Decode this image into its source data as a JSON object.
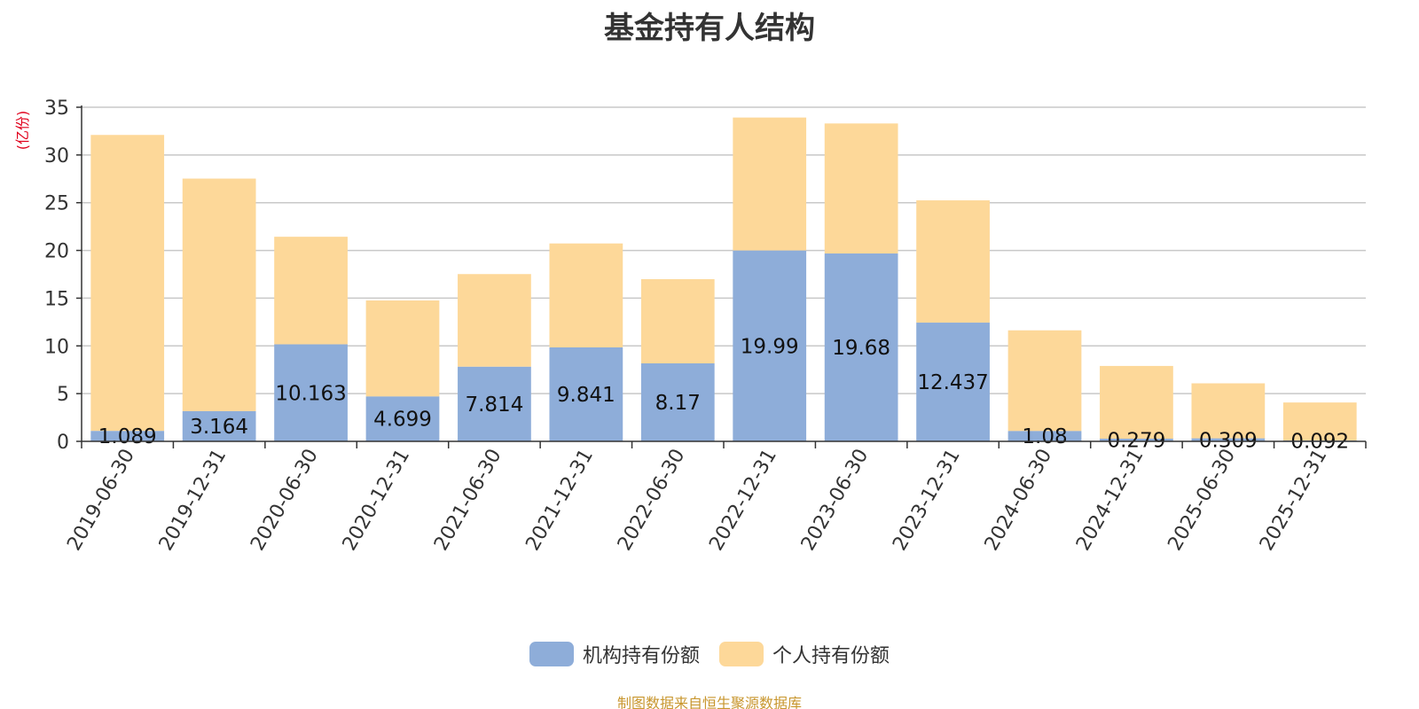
{
  "chart_data": {
    "type": "bar",
    "stacked": true,
    "title": "基金持有人结构",
    "ylabel": "(亿份)",
    "xlabel": "",
    "ylim": [
      0,
      35
    ],
    "yticks": [
      0,
      5,
      10,
      15,
      20,
      25,
      30,
      35
    ],
    "categories": [
      "2019-06-30",
      "2019-12-31",
      "2020-06-30",
      "2020-12-31",
      "2021-06-30",
      "2021-12-31",
      "2022-06-30",
      "2022-12-31",
      "2023-06-30",
      "2023-12-31",
      "2024-06-30",
      "2024-12-31",
      "2025-06-30",
      "2025-12-31"
    ],
    "series": [
      {
        "name": "机构持有份额",
        "color": "#8eadd9",
        "values": [
          1.089,
          3.164,
          10.163,
          4.699,
          7.814,
          9.841,
          8.17,
          19.99,
          19.68,
          12.437,
          1.08,
          0.279,
          0.309,
          0.092
        ],
        "labels": [
          "1.089",
          "3.164",
          "10.163",
          "4.699",
          "7.814",
          "9.841",
          "8.17",
          "19.99",
          "19.68",
          "12.437",
          "1.08",
          "0.279",
          "0.309",
          "0.092"
        ]
      },
      {
        "name": "个人持有份额",
        "color": "#fdd899",
        "values": [
          31.01,
          24.36,
          11.27,
          10.06,
          9.71,
          10.89,
          8.82,
          13.93,
          13.62,
          12.81,
          10.55,
          7.62,
          5.77,
          3.98
        ]
      }
    ],
    "legend_position": "bottom-center",
    "grid": true
  },
  "footer": {
    "source": "制图数据来自恒生聚源数据库"
  }
}
